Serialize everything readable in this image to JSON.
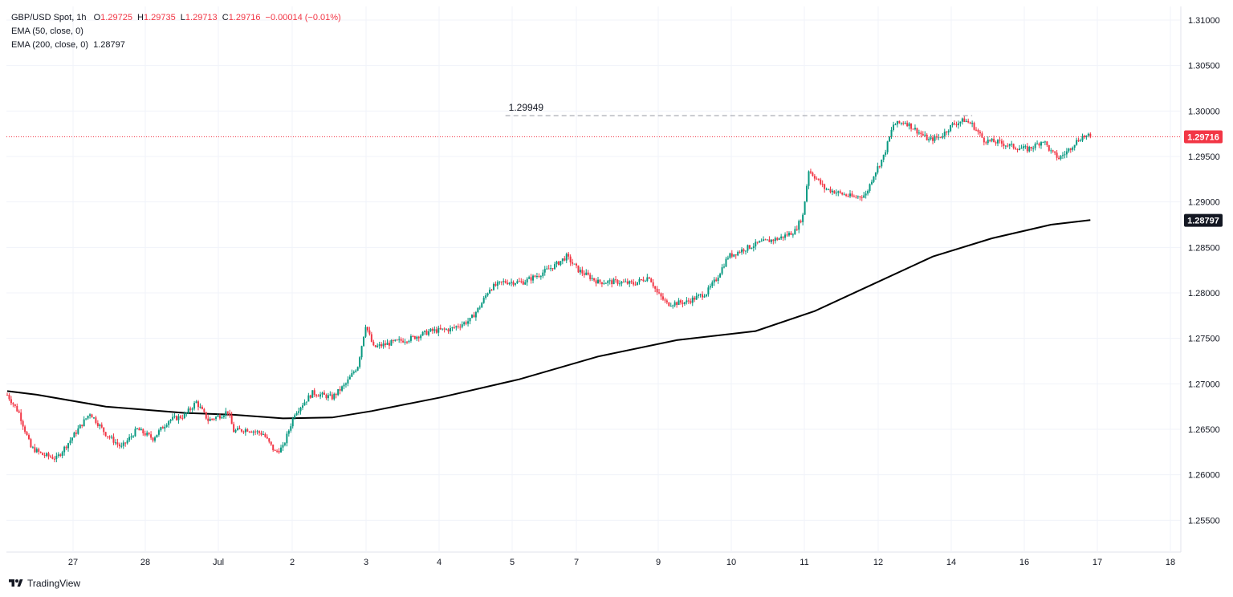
{
  "legend": {
    "symbol": "GBP/USD Spot, 1h",
    "ohlc": [
      {
        "k": "O",
        "v": "1.29725"
      },
      {
        "k": "H",
        "v": "1.29735"
      },
      {
        "k": "L",
        "v": "1.29713"
      },
      {
        "k": "C",
        "v": "1.29716"
      }
    ],
    "change": "−0.00014 (−0.01%)",
    "ema50": {
      "label": "EMA (50, close, 0)",
      "value": ""
    },
    "ema200": {
      "label": "EMA (200, close, 0)",
      "value": "1.28797"
    }
  },
  "brand": "TradingView",
  "colors": {
    "up": "#089981",
    "down": "#f23645",
    "ema": "#000000",
    "grid": "#f0f3fa",
    "axis_text": "#131722"
  },
  "chart_data": {
    "type": "candlestick",
    "ylim": [
      1.2515,
      1.3115
    ],
    "y_ticks": [
      "1.25500",
      "1.26000",
      "1.26500",
      "1.27000",
      "1.27500",
      "1.28000",
      "1.28500",
      "1.29000",
      "1.29500",
      "1.30000",
      "1.30500",
      "1.31000"
    ],
    "x_tick_labels": [
      "27",
      "28",
      "Jul",
      "2",
      "3",
      "4",
      "5",
      "7",
      "9",
      "10",
      "11",
      "12",
      "14",
      "16",
      "17",
      "18"
    ],
    "price_anchors": [
      [
        0,
        1.2688
      ],
      [
        6,
        1.2668
      ],
      [
        12,
        1.263
      ],
      [
        18,
        1.2622
      ],
      [
        25,
        1.2618
      ],
      [
        32,
        1.2638
      ],
      [
        42,
        1.2668
      ],
      [
        50,
        1.2645
      ],
      [
        58,
        1.263
      ],
      [
        66,
        1.265
      ],
      [
        74,
        1.264
      ],
      [
        82,
        1.266
      ],
      [
        90,
        1.2665
      ],
      [
        96,
        1.268
      ],
      [
        102,
        1.266
      ],
      [
        108,
        1.2665
      ],
      [
        112,
        1.267
      ],
      [
        115,
        1.2648
      ],
      [
        122,
        1.265
      ],
      [
        130,
        1.2645
      ],
      [
        136,
        1.2625
      ],
      [
        140,
        1.263
      ],
      [
        146,
        1.2668
      ],
      [
        155,
        1.269
      ],
      [
        165,
        1.2685
      ],
      [
        172,
        1.27
      ],
      [
        178,
        1.272
      ],
      [
        182,
        1.2765
      ],
      [
        186,
        1.274
      ],
      [
        195,
        1.2745
      ],
      [
        205,
        1.275
      ],
      [
        215,
        1.2758
      ],
      [
        225,
        1.276
      ],
      [
        235,
        1.277
      ],
      [
        240,
        1.2785
      ],
      [
        245,
        1.2805
      ],
      [
        252,
        1.2812
      ],
      [
        262,
        1.2812
      ],
      [
        270,
        1.282
      ],
      [
        278,
        1.283
      ],
      [
        284,
        1.284
      ],
      [
        290,
        1.2825
      ],
      [
        300,
        1.2812
      ],
      [
        310,
        1.2812
      ],
      [
        318,
        1.281
      ],
      [
        326,
        1.2818
      ],
      [
        330,
        1.28
      ],
      [
        335,
        1.2788
      ],
      [
        345,
        1.279
      ],
      [
        355,
        1.28
      ],
      [
        360,
        1.2815
      ],
      [
        366,
        1.284
      ],
      [
        374,
        1.2848
      ],
      [
        382,
        1.2855
      ],
      [
        392,
        1.286
      ],
      [
        400,
        1.2868
      ],
      [
        404,
        1.2885
      ],
      [
        407,
        1.2935
      ],
      [
        410,
        1.2928
      ],
      [
        415,
        1.2915
      ],
      [
        422,
        1.291
      ],
      [
        430,
        1.2905
      ],
      [
        436,
        1.2908
      ],
      [
        440,
        1.293
      ],
      [
        445,
        1.295
      ],
      [
        450,
        1.2985
      ],
      [
        456,
        1.2988
      ],
      [
        462,
        1.2978
      ],
      [
        468,
        1.2968
      ],
      [
        474,
        1.2972
      ],
      [
        480,
        1.2985
      ],
      [
        486,
        1.299
      ],
      [
        490,
        1.2985
      ],
      [
        496,
        1.2968
      ],
      [
        504,
        1.2965
      ],
      [
        512,
        1.296
      ],
      [
        518,
        1.2958
      ],
      [
        522,
        1.2962
      ],
      [
        526,
        1.2968
      ],
      [
        530,
        1.2955
      ],
      [
        534,
        1.2948
      ],
      [
        538,
        1.2955
      ],
      [
        542,
        1.2965
      ],
      [
        546,
        1.2972
      ],
      [
        550,
        1.2972
      ]
    ],
    "ema200_anchors": [
      [
        0,
        1.2692
      ],
      [
        15,
        1.2688
      ],
      [
        50,
        1.2675
      ],
      [
        90,
        1.2668
      ],
      [
        115,
        1.2666
      ],
      [
        140,
        1.2662
      ],
      [
        165,
        1.2663
      ],
      [
        185,
        1.267
      ],
      [
        220,
        1.2685
      ],
      [
        260,
        1.2705
      ],
      [
        300,
        1.273
      ],
      [
        340,
        1.2748
      ],
      [
        380,
        1.2758
      ],
      [
        410,
        1.278
      ],
      [
        440,
        1.281
      ],
      [
        470,
        1.284
      ],
      [
        500,
        1.286
      ],
      [
        530,
        1.2875
      ],
      [
        550,
        1.288
      ]
    ],
    "last_price": "1.29716",
    "ema200_value": "1.28797",
    "resistance": {
      "value": 1.29949,
      "label": "1.29949",
      "from_bar": 253,
      "to_bar": 490
    }
  }
}
